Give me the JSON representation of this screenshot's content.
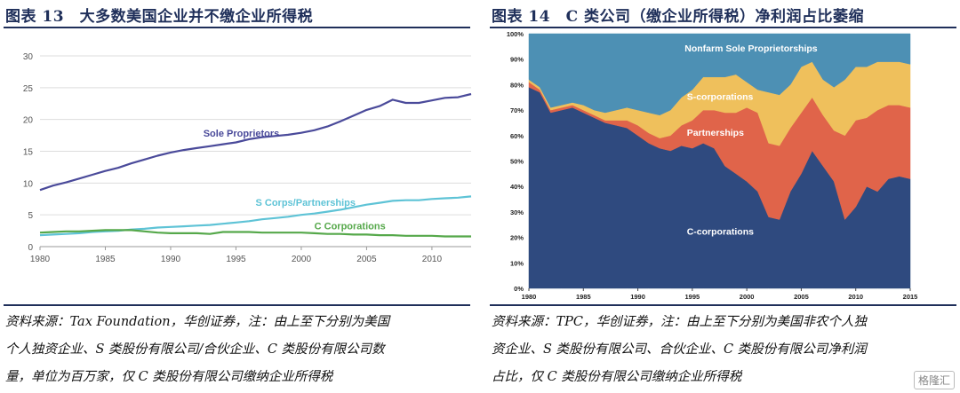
{
  "left": {
    "title": "图表 13　大多数美国企业并不缴企业所得税",
    "source_lines": [
      "资料来源：Tax Foundation，华创证券，注：由上至下分别为美国",
      "个人独资企业、S 类股份有限公司/合伙企业、C 类股份有限公司数",
      "量，单位为百万家，仅 C 类股份有限公司缴纳企业所得税"
    ]
  },
  "right": {
    "title": "图表 14　C 类公司（缴企业所得税）净利润占比萎缩",
    "source_lines": [
      "资料来源：TPC，华创证券，注：由上至下分别为美国非农个人独",
      "资企业、S 类股份有限公司、合伙企业、C 类股份有限公司净利润",
      "占比，仅 C 类股份有限公司缴纳企业所得税"
    ]
  },
  "watermark": "格隆汇",
  "colors": {
    "title": "#1f2f5a",
    "sole": "#4a4a9a",
    "scorp_line": "#5ec3d6",
    "ccorp_line": "#55a84a",
    "area_c": "#2f4a7f",
    "area_partner": "#e0644a",
    "area_s": "#efc05c",
    "area_nonfarm": "#4d90b4"
  },
  "chart_data": [
    {
      "type": "line",
      "title": "",
      "xlabel": "",
      "ylabel": "",
      "xlim": [
        1980,
        2013
      ],
      "ylim": [
        0,
        30
      ],
      "x_ticks": [
        1980,
        1985,
        1990,
        1995,
        2000,
        2005,
        2010
      ],
      "y_ticks": [
        0,
        5,
        10,
        15,
        20,
        25,
        30
      ],
      "x": [
        1980,
        1981,
        1982,
        1983,
        1984,
        1985,
        1986,
        1987,
        1988,
        1989,
        1990,
        1991,
        1992,
        1993,
        1994,
        1995,
        1996,
        1997,
        1998,
        1999,
        2000,
        2001,
        2002,
        2003,
        2004,
        2005,
        2006,
        2007,
        2008,
        2009,
        2010,
        2011,
        2012,
        2013
      ],
      "series": [
        {
          "name": "Sole Proprietors",
          "label": "Sole Proprietors",
          "color_key": "sole",
          "values": [
            8.9,
            9.6,
            10.1,
            10.7,
            11.3,
            11.9,
            12.4,
            13.1,
            13.7,
            14.3,
            14.8,
            15.2,
            15.5,
            15.8,
            16.1,
            16.4,
            16.9,
            17.2,
            17.4,
            17.6,
            17.9,
            18.3,
            18.9,
            19.7,
            20.6,
            21.5,
            22.1,
            23.1,
            22.6,
            22.6,
            23.0,
            23.4,
            23.5,
            24.0
          ]
        },
        {
          "name": "S Corps/Partnerships",
          "label": "S Corps/Partnerships",
          "color_key": "scorp_line",
          "values": [
            1.8,
            1.9,
            2.0,
            2.1,
            2.3,
            2.4,
            2.5,
            2.7,
            2.8,
            3.0,
            3.1,
            3.2,
            3.3,
            3.4,
            3.6,
            3.8,
            4.0,
            4.3,
            4.5,
            4.7,
            5.0,
            5.2,
            5.5,
            5.8,
            6.2,
            6.6,
            6.9,
            7.2,
            7.3,
            7.3,
            7.5,
            7.6,
            7.7,
            7.9
          ]
        },
        {
          "name": "C Corporations",
          "label": "C Corporations",
          "color_key": "ccorp_line",
          "values": [
            2.2,
            2.3,
            2.4,
            2.4,
            2.5,
            2.6,
            2.6,
            2.6,
            2.4,
            2.2,
            2.1,
            2.1,
            2.1,
            2.0,
            2.3,
            2.3,
            2.3,
            2.2,
            2.2,
            2.2,
            2.2,
            2.1,
            2.0,
            2.0,
            1.9,
            1.9,
            1.8,
            1.8,
            1.7,
            1.7,
            1.7,
            1.6,
            1.6,
            1.6
          ]
        }
      ]
    },
    {
      "type": "area",
      "stacked": true,
      "title": "",
      "xlabel": "",
      "ylabel": "",
      "xlim": [
        1980,
        2015
      ],
      "ylim": [
        0,
        100
      ],
      "x_ticks": [
        1980,
        1985,
        1990,
        1995,
        2000,
        2005,
        2010,
        2015
      ],
      "y_ticks": [
        "0%",
        "10%",
        "20%",
        "30%",
        "40%",
        "50%",
        "60%",
        "70%",
        "80%",
        "90%",
        "100%"
      ],
      "x": [
        1980,
        1981,
        1982,
        1983,
        1984,
        1985,
        1986,
        1987,
        1988,
        1989,
        1990,
        1991,
        1992,
        1993,
        1994,
        1995,
        1996,
        1997,
        1998,
        1999,
        2000,
        2001,
        2002,
        2003,
        2004,
        2005,
        2006,
        2007,
        2008,
        2009,
        2010,
        2011,
        2012,
        2013,
        2014,
        2015
      ],
      "series": [
        {
          "name": "C-corporations",
          "label": "C-corporations",
          "color_key": "area_c",
          "values": [
            79,
            77,
            69,
            70,
            71,
            69,
            67,
            65,
            64,
            63,
            60,
            57,
            55,
            54,
            56,
            55,
            57,
            55,
            48,
            45,
            42,
            38,
            28,
            27,
            38,
            45,
            54,
            48,
            42,
            27,
            32,
            40,
            38,
            43,
            44,
            43
          ]
        },
        {
          "name": "Partnerships",
          "label": "Partnerships",
          "color_key": "area_partner",
          "values": [
            2,
            1,
            1,
            1,
            1,
            1,
            1,
            1,
            2,
            3,
            4,
            4,
            4,
            6,
            8,
            11,
            13,
            15,
            21,
            24,
            29,
            31,
            29,
            29,
            25,
            24,
            21,
            20,
            20,
            33,
            34,
            27,
            32,
            29,
            28,
            28
          ]
        },
        {
          "name": "S-corporations",
          "label": "S-corporations",
          "color_key": "area_s",
          "values": [
            1,
            1,
            1,
            1,
            1,
            2,
            2,
            3,
            4,
            5,
            6,
            8,
            9,
            10,
            11,
            12,
            13,
            13,
            14,
            15,
            10,
            9,
            20,
            20,
            17,
            18,
            14,
            14,
            17,
            22,
            21,
            20,
            19,
            17,
            17,
            17
          ]
        },
        {
          "name": "Nonfarm Sole Proprietorships",
          "label": "Nonfarm Sole Proprietorships",
          "color_key": "area_nonfarm",
          "values": [
            18,
            21,
            29,
            28,
            27,
            28,
            30,
            31,
            30,
            29,
            30,
            31,
            32,
            30,
            25,
            22,
            17,
            17,
            17,
            16,
            19,
            22,
            23,
            24,
            20,
            13,
            11,
            18,
            21,
            18,
            13,
            13,
            11,
            11,
            11,
            12
          ]
        }
      ]
    }
  ]
}
